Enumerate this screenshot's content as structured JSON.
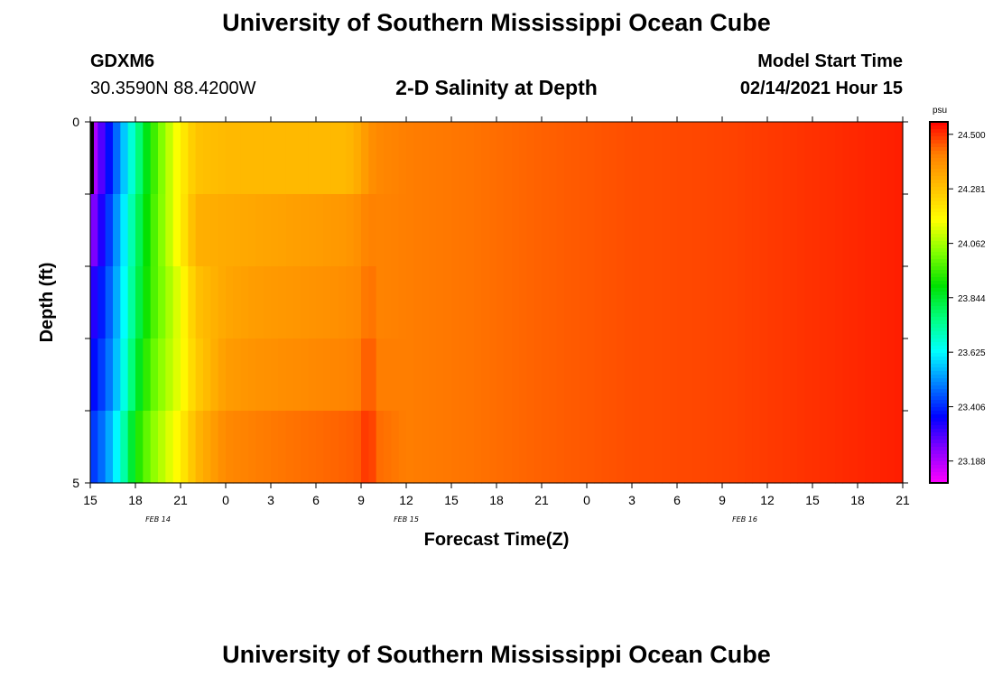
{
  "page": {
    "top_title": "University of Southern Mississippi Ocean Cube",
    "bottom_title": "University of Southern Mississippi Ocean Cube",
    "station": "GDXM6",
    "coords": "30.3590N 88.4200W",
    "plot_title": "2-D Salinity at Depth",
    "model_label": "Model Start Time",
    "model_time": "02/14/2021 Hour 15"
  },
  "colors": {
    "colormap": [
      "#ff00ff",
      "#8a00ff",
      "#0000ff",
      "#0080ff",
      "#00ffff",
      "#00ff80",
      "#00e000",
      "#80ff00",
      "#ffff00",
      "#ffc000",
      "#ff8000",
      "#ff0000"
    ]
  },
  "chart_data": {
    "type": "heatmap",
    "title": "2-D Salinity at Depth",
    "xlabel": "Forecast Time(Z)",
    "ylabel": "Depth (ft)",
    "x_tick_labels": [
      "15",
      "18",
      "21",
      "0",
      "3",
      "6",
      "9",
      "12",
      "15",
      "18",
      "21",
      "0",
      "3",
      "6",
      "9",
      "12",
      "15",
      "18",
      "21"
    ],
    "date_labels": [
      {
        "text": "FEB 14",
        "hour_index": 1.5
      },
      {
        "text": "FEB 15",
        "hour_index": 7
      },
      {
        "text": "FEB 16",
        "hour_index": 14.5
      }
    ],
    "y_tick_labels": [
      "0",
      "5"
    ],
    "ylim": [
      0,
      5
    ],
    "depth_levels": 5,
    "colorbar": {
      "unit": "psu",
      "min": 23.1,
      "max": 24.55,
      "tick_values": [
        24.5,
        24.281,
        24.062,
        23.844,
        23.625,
        23.406,
        23.188
      ],
      "tick_labels": [
        "24.500",
        "24.281",
        "24.062",
        "23.844",
        "23.625",
        "23.406",
        "23.188"
      ]
    },
    "value_key_hours": [
      0,
      1,
      2,
      3,
      4,
      5,
      6,
      7,
      9,
      11,
      13,
      15,
      17,
      18,
      18.5,
      19,
      21,
      25,
      30,
      36,
      42,
      48,
      54
    ],
    "value_key_rows": [
      [
        23.15,
        23.33,
        23.52,
        23.72,
        23.92,
        24.06,
        24.18,
        24.28,
        24.3,
        24.3,
        24.3,
        24.3,
        24.3,
        24.34,
        24.38,
        24.4,
        24.42,
        24.43,
        24.45,
        24.47,
        24.48,
        24.5,
        24.52
      ],
      [
        23.2,
        23.38,
        23.56,
        23.76,
        23.94,
        24.06,
        24.18,
        24.32,
        24.33,
        24.34,
        24.35,
        24.36,
        24.37,
        24.39,
        24.42,
        24.41,
        24.42,
        24.43,
        24.45,
        24.47,
        24.48,
        24.5,
        24.52
      ],
      [
        23.3,
        23.42,
        23.58,
        23.78,
        23.95,
        24.04,
        24.14,
        24.28,
        24.34,
        24.36,
        24.37,
        24.38,
        24.39,
        24.4,
        24.45,
        24.41,
        24.42,
        24.43,
        24.45,
        24.47,
        24.48,
        24.5,
        24.52
      ],
      [
        23.35,
        23.45,
        23.6,
        23.82,
        23.98,
        24.06,
        24.14,
        24.26,
        24.36,
        24.38,
        24.39,
        24.4,
        24.41,
        24.42,
        24.48,
        24.42,
        24.42,
        24.43,
        24.45,
        24.47,
        24.48,
        24.5,
        24.52
      ],
      [
        23.4,
        23.5,
        23.66,
        23.9,
        24.02,
        24.1,
        24.18,
        24.3,
        24.4,
        24.42,
        24.43,
        24.44,
        24.45,
        24.46,
        24.52,
        24.44,
        24.42,
        24.43,
        24.45,
        24.47,
        24.48,
        24.5,
        24.52
      ]
    ]
  }
}
